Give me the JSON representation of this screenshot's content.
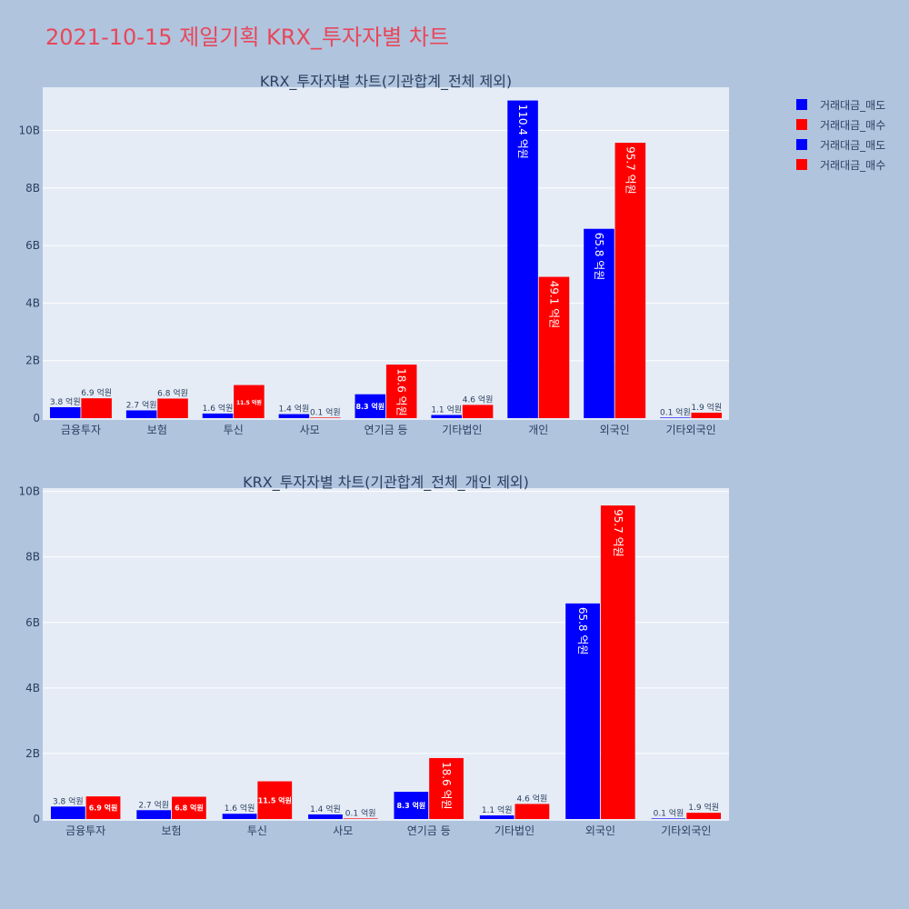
{
  "page_title": "2021-10-15 제일기획 KRX_투자자별 차트",
  "legend": {
    "placement": "top-right",
    "items": [
      {
        "label": "거래대금_매도",
        "color": "#0000ff"
      },
      {
        "label": "거래대금_매수",
        "color": "#ff0000"
      },
      {
        "label": "거래대금_매도",
        "color": "#0000ff"
      },
      {
        "label": "거래대금_매수",
        "color": "#ff0000"
      }
    ]
  },
  "chart_data": [
    {
      "type": "bar",
      "title": "KRX_투자자별 차트(기관합계_전체 제외)",
      "xlabel": "",
      "ylabel": "",
      "ylim": [
        0,
        11.5
      ],
      "yticks": [
        0,
        2,
        4,
        6,
        8,
        10
      ],
      "ytick_labels": [
        "0",
        "2B",
        "4B",
        "6B",
        "8B",
        "10B"
      ],
      "grid": true,
      "categories": [
        "금융투자",
        "보험",
        "투신",
        "사모",
        "연기금 등",
        "기타법인",
        "개인",
        "외국인",
        "기타외국인"
      ],
      "series": [
        {
          "name": "거래대금_매도",
          "color": "#0000ff",
          "values": [
            0.38,
            0.27,
            0.16,
            0.14,
            0.83,
            0.11,
            11.04,
            6.58,
            0.01
          ],
          "labels": [
            "3.8 억원",
            "2.7 억원",
            "1.6 억원",
            "1.4 억원",
            "8.3 억원",
            "1.1 억원",
            "110.4 억원",
            "65.8 억원",
            "0.1 억원"
          ]
        },
        {
          "name": "거래대금_매수",
          "color": "#ff0000",
          "values": [
            0.69,
            0.68,
            1.15,
            0.01,
            1.86,
            0.46,
            4.91,
            9.57,
            0.19
          ],
          "labels": [
            "6.9 억원",
            "6.8 억원",
            "11.5 억원",
            "0.1 억원",
            "18.6 억원",
            "4.6 억원",
            "49.1 억원",
            "95.7 억원",
            "1.9 억원"
          ]
        }
      ]
    },
    {
      "type": "bar",
      "title": "KRX_투자자별 차트(기관합계_전체_개인 제외)",
      "xlabel": "",
      "ylabel": "",
      "ylim": [
        0,
        10.1
      ],
      "yticks": [
        0,
        2,
        4,
        6,
        8,
        10
      ],
      "ytick_labels": [
        "0",
        "2B",
        "4B",
        "6B",
        "8B",
        "10B"
      ],
      "grid": true,
      "categories": [
        "금융투자",
        "보험",
        "투신",
        "사모",
        "연기금 등",
        "기타법인",
        "외국인",
        "기타외국인"
      ],
      "series": [
        {
          "name": "거래대금_매도",
          "color": "#0000ff",
          "values": [
            0.38,
            0.27,
            0.16,
            0.14,
            0.83,
            0.11,
            6.58,
            0.01
          ],
          "labels": [
            "3.8 억원",
            "2.7 억원",
            "1.6 억원",
            "1.4 억원",
            "8.3 억원",
            "1.1 억원",
            "65.8 억원",
            "0.1 억원"
          ]
        },
        {
          "name": "거래대금_매수",
          "color": "#ff0000",
          "values": [
            0.69,
            0.68,
            1.15,
            0.01,
            1.86,
            0.46,
            9.57,
            0.19
          ],
          "labels": [
            "6.9 억원",
            "6.8 억원",
            "11.5 억원",
            "0.1 억원",
            "18.6 억원",
            "4.6 억원",
            "95.7 억원",
            "1.9 억원"
          ]
        }
      ]
    }
  ]
}
